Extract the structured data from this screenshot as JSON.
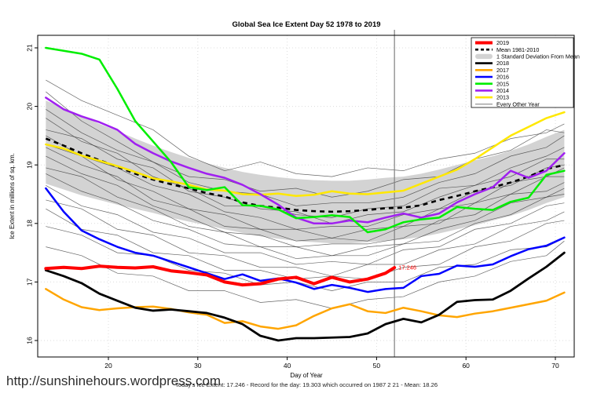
{
  "footer": {
    "url": "http://sunshinehours.wordpress.com",
    "caption": "Today's Ice Extent: 17.246  - Record for the day: 19.303 which occurred on 1987 2 21  - Mean: 18.26"
  },
  "chart_data": {
    "type": "line",
    "title": "Global Sea Ice Extent Day 52 1978 to 2019",
    "xlabel": "Day of Year",
    "ylabel": "Ice Extent in millions of sq. km.",
    "xlim": [
      12,
      72.5
    ],
    "ylim": [
      15.7,
      21.2
    ],
    "x_ticks": [
      20,
      30,
      40,
      50,
      60,
      70
    ],
    "y_ticks": [
      16,
      17,
      18,
      19,
      20,
      21
    ],
    "grid": true,
    "legend_position": "top-right",
    "colors": {
      "grid": "#dcdcdc",
      "frame": "#000000",
      "day52_line": "#808080",
      "thin": "#333333",
      "band": "#d3d3d3"
    },
    "marker": {
      "day": 52,
      "label": "17.246",
      "color": "#ff0000"
    },
    "days": [
      13,
      15,
      17,
      19,
      21,
      23,
      25,
      27,
      29,
      31,
      33,
      35,
      37,
      39,
      41,
      43,
      45,
      47,
      49,
      51,
      53,
      55,
      57,
      59,
      61,
      63,
      65,
      67,
      69,
      71
    ],
    "band": {
      "label": "1 Standard Deviation From Mean",
      "top": [
        20.1,
        19.97,
        19.84,
        19.7,
        19.58,
        19.45,
        19.33,
        19.22,
        19.12,
        19.03,
        18.95,
        18.88,
        18.83,
        18.79,
        18.76,
        18.74,
        18.73,
        18.73,
        18.75,
        18.78,
        18.8,
        18.85,
        18.92,
        19.0,
        19.08,
        19.15,
        19.24,
        19.35,
        19.48,
        19.6
      ],
      "bottom": [
        18.68,
        18.58,
        18.48,
        18.4,
        18.32,
        18.25,
        18.18,
        18.1,
        18.03,
        17.97,
        17.9,
        17.84,
        17.78,
        17.74,
        17.7,
        17.68,
        17.66,
        17.66,
        17.68,
        17.7,
        17.73,
        17.77,
        17.83,
        17.9,
        17.97,
        18.05,
        18.13,
        18.23,
        18.35,
        18.45
      ]
    },
    "mean": {
      "label": "Mean 1981-2010",
      "color": "#000000",
      "values": [
        19.45,
        19.33,
        19.2,
        19.08,
        18.97,
        18.85,
        18.75,
        18.67,
        18.6,
        18.52,
        18.46,
        18.36,
        18.3,
        18.27,
        18.23,
        18.21,
        18.2,
        18.21,
        18.23,
        18.26,
        18.27,
        18.31,
        18.4,
        18.47,
        18.55,
        18.62,
        18.7,
        18.8,
        18.93,
        19.0
      ]
    },
    "series": [
      {
        "label": "2019",
        "color": "#ff0000",
        "width": 4,
        "days": [
          13,
          15,
          17,
          19,
          21,
          23,
          25,
          27,
          29,
          31,
          33,
          35,
          37,
          39,
          41,
          43,
          45,
          47,
          49,
          51,
          52
        ],
        "values": [
          17.23,
          17.25,
          17.23,
          17.27,
          17.25,
          17.24,
          17.26,
          17.19,
          17.16,
          17.12,
          17.0,
          16.95,
          16.97,
          17.05,
          17.08,
          16.97,
          17.08,
          17.0,
          17.05,
          17.15,
          17.246
        ]
      },
      {
        "label": "2018",
        "color": "#000000",
        "width": 2.8,
        "values": [
          17.2,
          17.1,
          16.98,
          16.8,
          16.68,
          16.56,
          16.51,
          16.53,
          16.5,
          16.47,
          16.39,
          16.28,
          16.08,
          16.0,
          16.04,
          16.04,
          16.05,
          16.06,
          16.12,
          16.28,
          16.37,
          16.31,
          16.44,
          16.66,
          16.69,
          16.7,
          16.85,
          17.06,
          17.26,
          17.5
        ]
      },
      {
        "label": "2017",
        "color": "#ffa500",
        "width": 2.5,
        "values": [
          16.88,
          16.7,
          16.57,
          16.52,
          16.55,
          16.57,
          16.58,
          16.54,
          16.48,
          16.44,
          16.3,
          16.33,
          16.24,
          16.2,
          16.26,
          16.42,
          16.55,
          16.62,
          16.5,
          16.47,
          16.56,
          16.5,
          16.43,
          16.4,
          16.46,
          16.5,
          16.56,
          16.62,
          16.68,
          16.82
        ]
      },
      {
        "label": "2016",
        "color": "#0000ff",
        "width": 2.5,
        "values": [
          18.6,
          18.2,
          17.88,
          17.73,
          17.6,
          17.5,
          17.45,
          17.35,
          17.25,
          17.15,
          17.05,
          17.13,
          17.02,
          17.06,
          16.99,
          16.88,
          16.95,
          16.9,
          16.83,
          16.88,
          16.9,
          17.1,
          17.14,
          17.28,
          17.26,
          17.3,
          17.44,
          17.56,
          17.62,
          17.76
        ]
      },
      {
        "label": "2015",
        "color": "#00ee00",
        "width": 2.5,
        "values": [
          21.0,
          20.95,
          20.9,
          20.8,
          20.3,
          19.75,
          19.4,
          19.05,
          18.62,
          18.57,
          18.62,
          18.31,
          18.3,
          18.24,
          18.09,
          18.11,
          18.14,
          18.11,
          17.85,
          17.9,
          18.02,
          18.07,
          18.1,
          18.28,
          18.25,
          18.23,
          18.37,
          18.44,
          18.83,
          18.9
        ]
      },
      {
        "label": "2014",
        "color": "#a020f0",
        "width": 2.5,
        "values": [
          20.15,
          19.95,
          19.83,
          19.73,
          19.6,
          19.36,
          19.2,
          19.06,
          18.95,
          18.85,
          18.78,
          18.66,
          18.5,
          18.32,
          18.1,
          18.0,
          18.0,
          18.05,
          18.02,
          18.1,
          18.17,
          18.1,
          18.17,
          18.36,
          18.5,
          18.62,
          18.9,
          18.78,
          18.9,
          19.2
        ]
      },
      {
        "label": "2013",
        "color": "#ffe800",
        "width": 2.5,
        "values": [
          19.35,
          19.28,
          19.16,
          19.07,
          18.98,
          18.88,
          18.77,
          18.72,
          18.66,
          18.58,
          18.56,
          18.5,
          18.49,
          18.51,
          18.47,
          18.49,
          18.55,
          18.51,
          18.5,
          18.53,
          18.56,
          18.68,
          18.8,
          18.92,
          19.1,
          19.3,
          19.5,
          19.65,
          19.8,
          19.9
        ]
      }
    ],
    "thin_series": {
      "label": "Every Other Year",
      "color": "#333333",
      "width": 0.7,
      "opacity": 0.75,
      "days": [
        13,
        17,
        21,
        25,
        29,
        33,
        37,
        41,
        45,
        49,
        53,
        57,
        61,
        65,
        69,
        71
      ],
      "lines": [
        [
          20.45,
          20.1,
          19.85,
          19.6,
          19.15,
          18.9,
          19.05,
          18.85,
          18.8,
          18.95,
          18.9,
          19.1,
          19.2,
          19.45,
          19.55,
          19.7
        ],
        [
          20.25,
          19.75,
          19.4,
          19.05,
          18.8,
          18.75,
          18.55,
          18.6,
          18.45,
          18.55,
          18.75,
          18.8,
          19.1,
          19.25,
          19.6,
          19.55
        ],
        [
          19.95,
          19.55,
          19.25,
          19.05,
          18.7,
          18.55,
          18.5,
          18.3,
          18.35,
          18.35,
          18.45,
          18.7,
          18.85,
          19.15,
          19.3,
          19.5
        ],
        [
          19.8,
          19.4,
          19.2,
          18.8,
          18.6,
          18.3,
          18.3,
          18.15,
          18.1,
          18.25,
          18.3,
          18.6,
          18.65,
          18.95,
          19.15,
          19.3
        ],
        [
          19.6,
          19.45,
          19.1,
          18.95,
          18.55,
          18.45,
          18.25,
          18.2,
          18.0,
          18.15,
          18.2,
          18.45,
          18.65,
          18.8,
          19.1,
          19.1
        ],
        [
          19.5,
          19.15,
          18.95,
          18.65,
          18.5,
          18.2,
          18.1,
          17.9,
          17.95,
          17.95,
          18.15,
          18.25,
          18.55,
          18.65,
          18.95,
          19.0
        ],
        [
          19.35,
          19.15,
          18.75,
          18.55,
          18.25,
          18.15,
          17.9,
          17.9,
          17.75,
          17.9,
          17.95,
          18.25,
          18.35,
          18.7,
          18.8,
          18.95
        ],
        [
          19.3,
          19.0,
          18.8,
          18.4,
          18.25,
          17.95,
          17.9,
          17.7,
          17.75,
          17.7,
          17.95,
          18.0,
          18.35,
          18.5,
          18.8,
          18.8
        ],
        [
          19.15,
          18.85,
          18.65,
          18.3,
          18.1,
          17.85,
          17.8,
          17.6,
          17.65,
          17.65,
          17.75,
          18.05,
          18.15,
          18.5,
          18.55,
          18.7
        ],
        [
          18.95,
          18.8,
          18.45,
          18.25,
          17.95,
          17.85,
          17.6,
          17.6,
          17.45,
          17.6,
          17.65,
          17.9,
          18.05,
          18.35,
          18.45,
          18.6
        ],
        [
          18.85,
          18.55,
          18.35,
          18.05,
          17.9,
          17.65,
          17.6,
          17.4,
          17.45,
          17.45,
          17.65,
          17.7,
          18.0,
          18.15,
          18.45,
          18.5
        ],
        [
          18.65,
          18.3,
          18.15,
          17.85,
          17.75,
          17.5,
          17.5,
          17.3,
          17.35,
          17.3,
          17.55,
          17.6,
          17.9,
          18.0,
          18.3,
          18.35
        ],
        [
          18.4,
          18.25,
          17.9,
          17.8,
          17.5,
          17.45,
          17.25,
          17.25,
          17.1,
          17.3,
          17.3,
          17.55,
          17.65,
          17.95,
          18.05,
          18.2
        ],
        [
          18.25,
          17.9,
          17.8,
          17.5,
          17.45,
          17.2,
          17.2,
          17.05,
          17.1,
          17.05,
          17.25,
          17.3,
          17.6,
          17.7,
          18.0,
          18.05
        ],
        [
          17.95,
          17.8,
          17.5,
          17.45,
          17.2,
          17.15,
          16.95,
          17.0,
          16.85,
          17.0,
          17.0,
          17.25,
          17.3,
          17.55,
          17.6,
          17.75
        ],
        [
          17.6,
          17.45,
          17.15,
          17.1,
          16.85,
          16.85,
          16.65,
          16.7,
          16.55,
          16.7,
          16.75,
          17.0,
          17.1,
          17.35,
          17.45,
          17.7
        ]
      ]
    },
    "legend": [
      {
        "label": "2019",
        "swatch": "line",
        "color": "#ff0000",
        "width": 4
      },
      {
        "label": "Mean 1981-2010",
        "swatch": "dashed",
        "color": "#000000",
        "width": 2.6
      },
      {
        "label": "1 Standard Deviation From Mean",
        "swatch": "band",
        "color": "#d3d3d3"
      },
      {
        "label": "2018",
        "swatch": "line",
        "color": "#000000",
        "width": 2.6
      },
      {
        "label": "2017",
        "swatch": "line",
        "color": "#ffa500",
        "width": 2.6
      },
      {
        "label": "2016",
        "swatch": "line",
        "color": "#0000ff",
        "width": 2.6
      },
      {
        "label": "2015",
        "swatch": "line",
        "color": "#00ee00",
        "width": 2.6
      },
      {
        "label": "2014",
        "swatch": "line",
        "color": "#a020f0",
        "width": 2.6
      },
      {
        "label": "2013",
        "swatch": "line",
        "color": "#ffe800",
        "width": 2.6
      },
      {
        "label": "Every Other Year",
        "swatch": "line",
        "color": "#666666",
        "width": 0.8
      }
    ]
  }
}
